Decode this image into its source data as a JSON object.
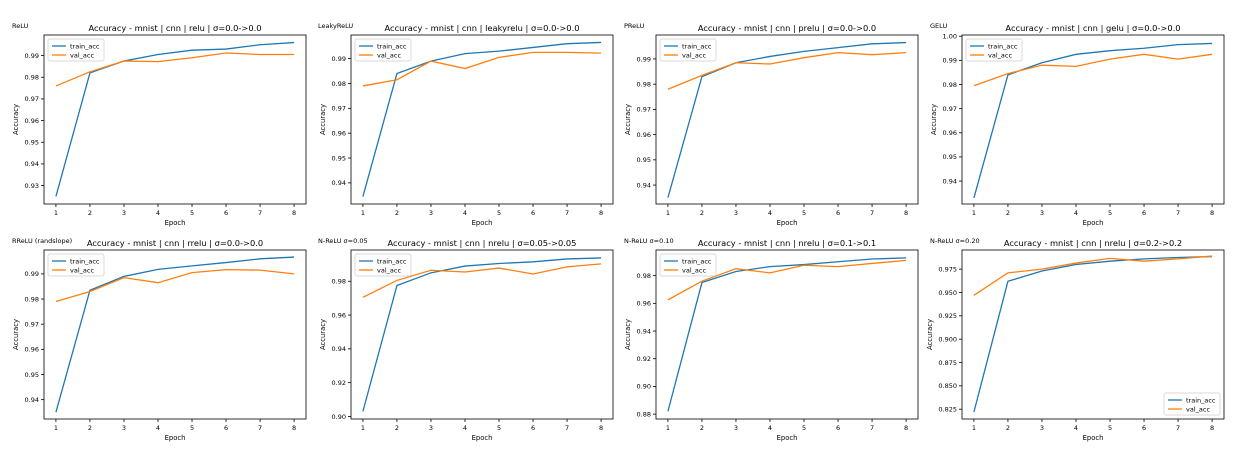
{
  "legend_labels": {
    "train": "train_acc",
    "val": "val_acc"
  },
  "colors": {
    "train": "#1f77b4",
    "val": "#ff7f0e",
    "axis": "#000000"
  },
  "chart_data": [
    {
      "type": "line",
      "panel_label": "ReLU",
      "title": "Accuracy - mnist | cnn | relu | σ=0.0->0.0",
      "xlabel": "Epoch",
      "ylabel": "Accuracy",
      "x": [
        1,
        2,
        3,
        4,
        5,
        6,
        7,
        8
      ],
      "xlim": [
        0.65,
        8.35
      ],
      "ylim": [
        0.9215,
        0.9995
      ],
      "yticks": [
        0.93,
        0.94,
        0.95,
        0.96,
        0.97,
        0.98,
        0.99
      ],
      "ytick_labels": [
        "0.93",
        "0.94",
        "0.95",
        "0.96",
        "0.97",
        "0.98",
        "0.99"
      ],
      "legend_position": "upper-left",
      "series": [
        {
          "name": "train_acc",
          "values": [
            0.925,
            0.982,
            0.9875,
            0.9905,
            0.9925,
            0.993,
            0.995,
            0.996
          ]
        },
        {
          "name": "val_acc",
          "values": [
            0.976,
            0.9825,
            0.9875,
            0.9872,
            0.989,
            0.9912,
            0.9905,
            0.9905
          ]
        }
      ]
    },
    {
      "type": "line",
      "panel_label": "LeakyReLU",
      "title": "Accuracy - mnist | cnn | leakyrelu | σ=0.0->0.0",
      "xlabel": "Epoch",
      "ylabel": "Accuracy",
      "x": [
        1,
        2,
        3,
        4,
        5,
        6,
        7,
        8
      ],
      "xlim": [
        0.65,
        8.35
      ],
      "ylim": [
        0.9315,
        0.9995
      ],
      "yticks": [
        0.94,
        0.95,
        0.96,
        0.97,
        0.98,
        0.99
      ],
      "ytick_labels": [
        "0.94",
        "0.95",
        "0.96",
        "0.97",
        "0.98",
        "0.99"
      ],
      "legend_position": "upper-left",
      "series": [
        {
          "name": "train_acc",
          "values": [
            0.9345,
            0.984,
            0.989,
            0.992,
            0.993,
            0.9945,
            0.996,
            0.9965
          ]
        },
        {
          "name": "val_acc",
          "values": [
            0.979,
            0.9815,
            0.989,
            0.986,
            0.9905,
            0.9925,
            0.9925,
            0.9922
          ]
        }
      ]
    },
    {
      "type": "line",
      "panel_label": "PReLU",
      "title": "Accuracy - mnist | cnn | prelu | σ=0.0->0.0",
      "xlabel": "Epoch",
      "ylabel": "Accuracy",
      "x": [
        1,
        2,
        3,
        4,
        5,
        6,
        7,
        8
      ],
      "xlim": [
        0.65,
        8.35
      ],
      "ylim": [
        0.9325,
        0.9995
      ],
      "yticks": [
        0.94,
        0.95,
        0.96,
        0.97,
        0.98,
        0.99
      ],
      "ytick_labels": [
        "0.94",
        "0.95",
        "0.96",
        "0.97",
        "0.98",
        "0.99"
      ],
      "legend_position": "upper-left",
      "series": [
        {
          "name": "train_acc",
          "values": [
            0.935,
            0.983,
            0.9885,
            0.991,
            0.993,
            0.9945,
            0.996,
            0.9965
          ]
        },
        {
          "name": "val_acc",
          "values": [
            0.978,
            0.9835,
            0.9885,
            0.988,
            0.9905,
            0.9925,
            0.9917,
            0.9925
          ]
        }
      ]
    },
    {
      "type": "line",
      "panel_label": "GELU",
      "title": "Accuracy - mnist | cnn | gelu | σ=0.0->0.0",
      "xlabel": "Epoch",
      "ylabel": "Accuracy",
      "x": [
        1,
        2,
        3,
        4,
        5,
        6,
        7,
        8
      ],
      "xlim": [
        0.65,
        8.35
      ],
      "ylim": [
        0.9305,
        1.0005
      ],
      "yticks": [
        0.94,
        0.95,
        0.96,
        0.97,
        0.98,
        0.99,
        1.0
      ],
      "ytick_labels": [
        "0.94",
        "0.95",
        "0.96",
        "0.97",
        "0.98",
        "0.99",
        "1.00"
      ],
      "legend_position": "upper-left",
      "series": [
        {
          "name": "train_acc",
          "values": [
            0.933,
            0.984,
            0.989,
            0.9925,
            0.994,
            0.995,
            0.9965,
            0.997
          ]
        },
        {
          "name": "val_acc",
          "values": [
            0.9795,
            0.9845,
            0.988,
            0.9875,
            0.9905,
            0.9925,
            0.9905,
            0.9925
          ]
        }
      ]
    },
    {
      "type": "line",
      "panel_label": "RReLU (randslope)",
      "title": "Accuracy - mnist | cnn | rrelu | σ=0.0->0.0",
      "xlabel": "Epoch",
      "ylabel": "Accuracy",
      "x": [
        1,
        2,
        3,
        4,
        5,
        6,
        7,
        8
      ],
      "xlim": [
        0.65,
        8.35
      ],
      "ylim": [
        0.9323,
        0.9995
      ],
      "yticks": [
        0.94,
        0.95,
        0.96,
        0.97,
        0.98,
        0.99
      ],
      "ytick_labels": [
        "0.94",
        "0.95",
        "0.96",
        "0.97",
        "0.98",
        "0.99"
      ],
      "legend_position": "upper-left",
      "series": [
        {
          "name": "train_acc",
          "values": [
            0.935,
            0.9835,
            0.989,
            0.9918,
            0.9932,
            0.9945,
            0.996,
            0.9967
          ]
        },
        {
          "name": "val_acc",
          "values": [
            0.979,
            0.983,
            0.9885,
            0.9865,
            0.9905,
            0.9917,
            0.9915,
            0.99
          ]
        }
      ]
    },
    {
      "type": "line",
      "panel_label": "N-ReLU σ=0.05",
      "title": "Accuracy - mnist | cnn | nrelu | σ=0.05->0.05",
      "xlabel": "Epoch",
      "ylabel": "Accuracy",
      "x": [
        1,
        2,
        3,
        4,
        5,
        6,
        7,
        8
      ],
      "xlim": [
        0.65,
        8.35
      ],
      "ylim": [
        0.8985,
        0.9985
      ],
      "yticks": [
        0.9,
        0.92,
        0.94,
        0.96,
        0.98
      ],
      "ytick_labels": [
        "0.90",
        "0.92",
        "0.94",
        "0.96",
        "0.98"
      ],
      "legend_position": "upper-left",
      "series": [
        {
          "name": "train_acc",
          "values": [
            0.903,
            0.9775,
            0.985,
            0.989,
            0.9905,
            0.9915,
            0.9932,
            0.9938
          ]
        },
        {
          "name": "val_acc",
          "values": [
            0.9705,
            0.9805,
            0.9865,
            0.9855,
            0.9878,
            0.9843,
            0.9885,
            0.9903
          ]
        }
      ]
    },
    {
      "type": "line",
      "panel_label": "N-ReLU σ=0.10",
      "title": "Accuracy - mnist | cnn | nrelu | σ=0.1->0.1",
      "xlabel": "Epoch",
      "ylabel": "Accuracy",
      "x": [
        1,
        2,
        3,
        4,
        5,
        6,
        7,
        8
      ],
      "xlim": [
        0.65,
        8.35
      ],
      "ylim": [
        0.8765,
        0.9985
      ],
      "yticks": [
        0.88,
        0.9,
        0.92,
        0.94,
        0.96,
        0.98
      ],
      "ytick_labels": [
        "0.88",
        "0.90",
        "0.92",
        "0.94",
        "0.96",
        "0.98"
      ],
      "legend_position": "upper-left",
      "series": [
        {
          "name": "train_acc",
          "values": [
            0.882,
            0.975,
            0.983,
            0.9865,
            0.988,
            0.99,
            0.992,
            0.9928
          ]
        },
        {
          "name": "val_acc",
          "values": [
            0.9625,
            0.976,
            0.985,
            0.982,
            0.9875,
            0.9865,
            0.9888,
            0.991
          ]
        }
      ]
    },
    {
      "type": "line",
      "panel_label": "N-ReLU σ=0.20",
      "title": "Accuracy - mnist | cnn | nrelu | σ=0.2->0.2",
      "xlabel": "Epoch",
      "ylabel": "Accuracy",
      "x": [
        1,
        2,
        3,
        4,
        5,
        6,
        7,
        8
      ],
      "xlim": [
        0.65,
        8.35
      ],
      "ylim": [
        0.8145,
        0.9955
      ],
      "yticks": [
        0.825,
        0.85,
        0.875,
        0.9,
        0.925,
        0.95,
        0.975
      ],
      "ytick_labels": [
        "0.825",
        "0.850",
        "0.875",
        "0.900",
        "0.925",
        "0.950",
        "0.975"
      ],
      "legend_position": "lower-right",
      "series": [
        {
          "name": "train_acc",
          "values": [
            0.822,
            0.962,
            0.973,
            0.98,
            0.9835,
            0.986,
            0.9875,
            0.9885
          ]
        },
        {
          "name": "val_acc",
          "values": [
            0.947,
            0.971,
            0.975,
            0.9815,
            0.9865,
            0.9835,
            0.986,
            0.989
          ]
        }
      ]
    }
  ]
}
